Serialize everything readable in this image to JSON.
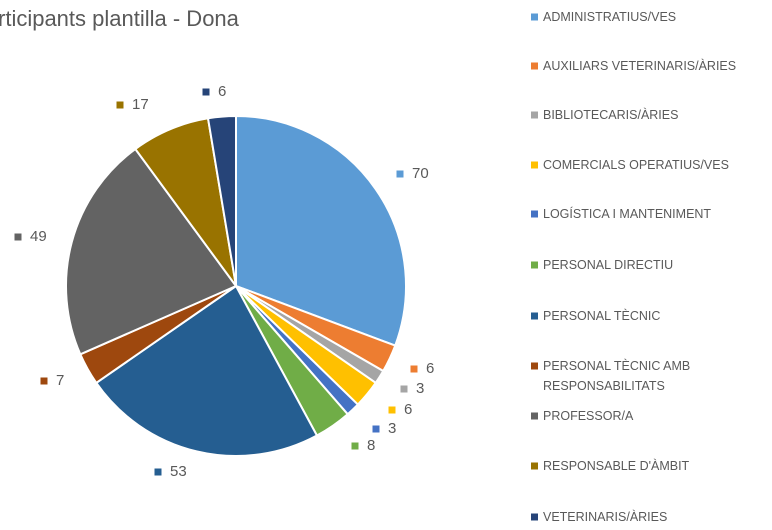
{
  "chart_data": {
    "type": "pie",
    "title": "rticipants plantilla - Dona",
    "categories": [
      "ADMINISTRATIUS/VES",
      "AUXILIARS VETERINARIS/ÀRIES",
      "BIBLIOTECARIS/ÀRIES",
      "COMERCIALS OPERATIUS/VES",
      "LOGÍSTICA I MANTENIMENT",
      "PERSONAL DIRECTIU",
      "PERSONAL TÈCNIC",
      "PERSONAL TÈCNIC AMB RESPONSABILITATS",
      "PROFESSOR/A",
      "RESPONSABLE D'ÀMBIT",
      "VETERINARIS/ÀRIES"
    ],
    "values": [
      70,
      6,
      3,
      6,
      3,
      8,
      53,
      7,
      49,
      17,
      6
    ],
    "colors": [
      "#5b9bd5",
      "#ed7d31",
      "#a5a5a5",
      "#ffc000",
      "#4472c4",
      "#70ad47",
      "#255e91",
      "#9e480e",
      "#636363",
      "#997300",
      "#264478"
    ],
    "legend": "right"
  }
}
